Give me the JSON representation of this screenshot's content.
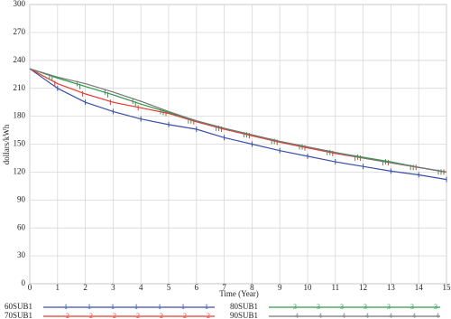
{
  "chart_data": {
    "type": "line",
    "x_label": "Time (Year)",
    "y_label": "dollars/kWh",
    "x": [
      0,
      1,
      2,
      3,
      4,
      5,
      6,
      7,
      8,
      9,
      10,
      11,
      12,
      13,
      14,
      15
    ],
    "xlim": [
      0,
      15
    ],
    "xticks": [
      0,
      1,
      2,
      3,
      4,
      5,
      6,
      7,
      8,
      9,
      10,
      11,
      12,
      13,
      14,
      15
    ],
    "ylim": [
      0,
      300
    ],
    "yticks": [
      0,
      30,
      60,
      90,
      120,
      150,
      180,
      210,
      240,
      270,
      300
    ],
    "grid": true,
    "series": [
      {
        "name": "60SUB1",
        "marker": "1",
        "color": "#3a4fa8",
        "values": [
          231,
          210,
          195,
          185,
          177,
          171,
          166,
          157,
          150,
          143,
          137,
          131,
          126,
          121,
          117,
          112
        ]
      },
      {
        "name": "70SUB1",
        "marker": "2",
        "color": "#e8392f",
        "values": [
          231,
          215,
          204,
          195,
          189,
          183,
          174,
          166,
          159,
          152,
          146,
          140,
          135,
          130,
          125,
          120
        ]
      },
      {
        "name": "80SUB1",
        "marker": "3",
        "color": "#2e9a4a",
        "values": [
          231,
          221,
          212,
          203,
          193,
          184,
          175,
          167,
          160,
          153,
          147,
          141,
          136,
          131,
          125,
          120
        ]
      },
      {
        "name": "90SUB1",
        "marker": "4",
        "color": "#777777",
        "values": [
          231,
          222,
          215,
          206,
          196,
          185,
          175,
          167,
          160,
          153,
          147,
          141,
          135,
          130,
          125,
          120
        ]
      }
    ]
  }
}
